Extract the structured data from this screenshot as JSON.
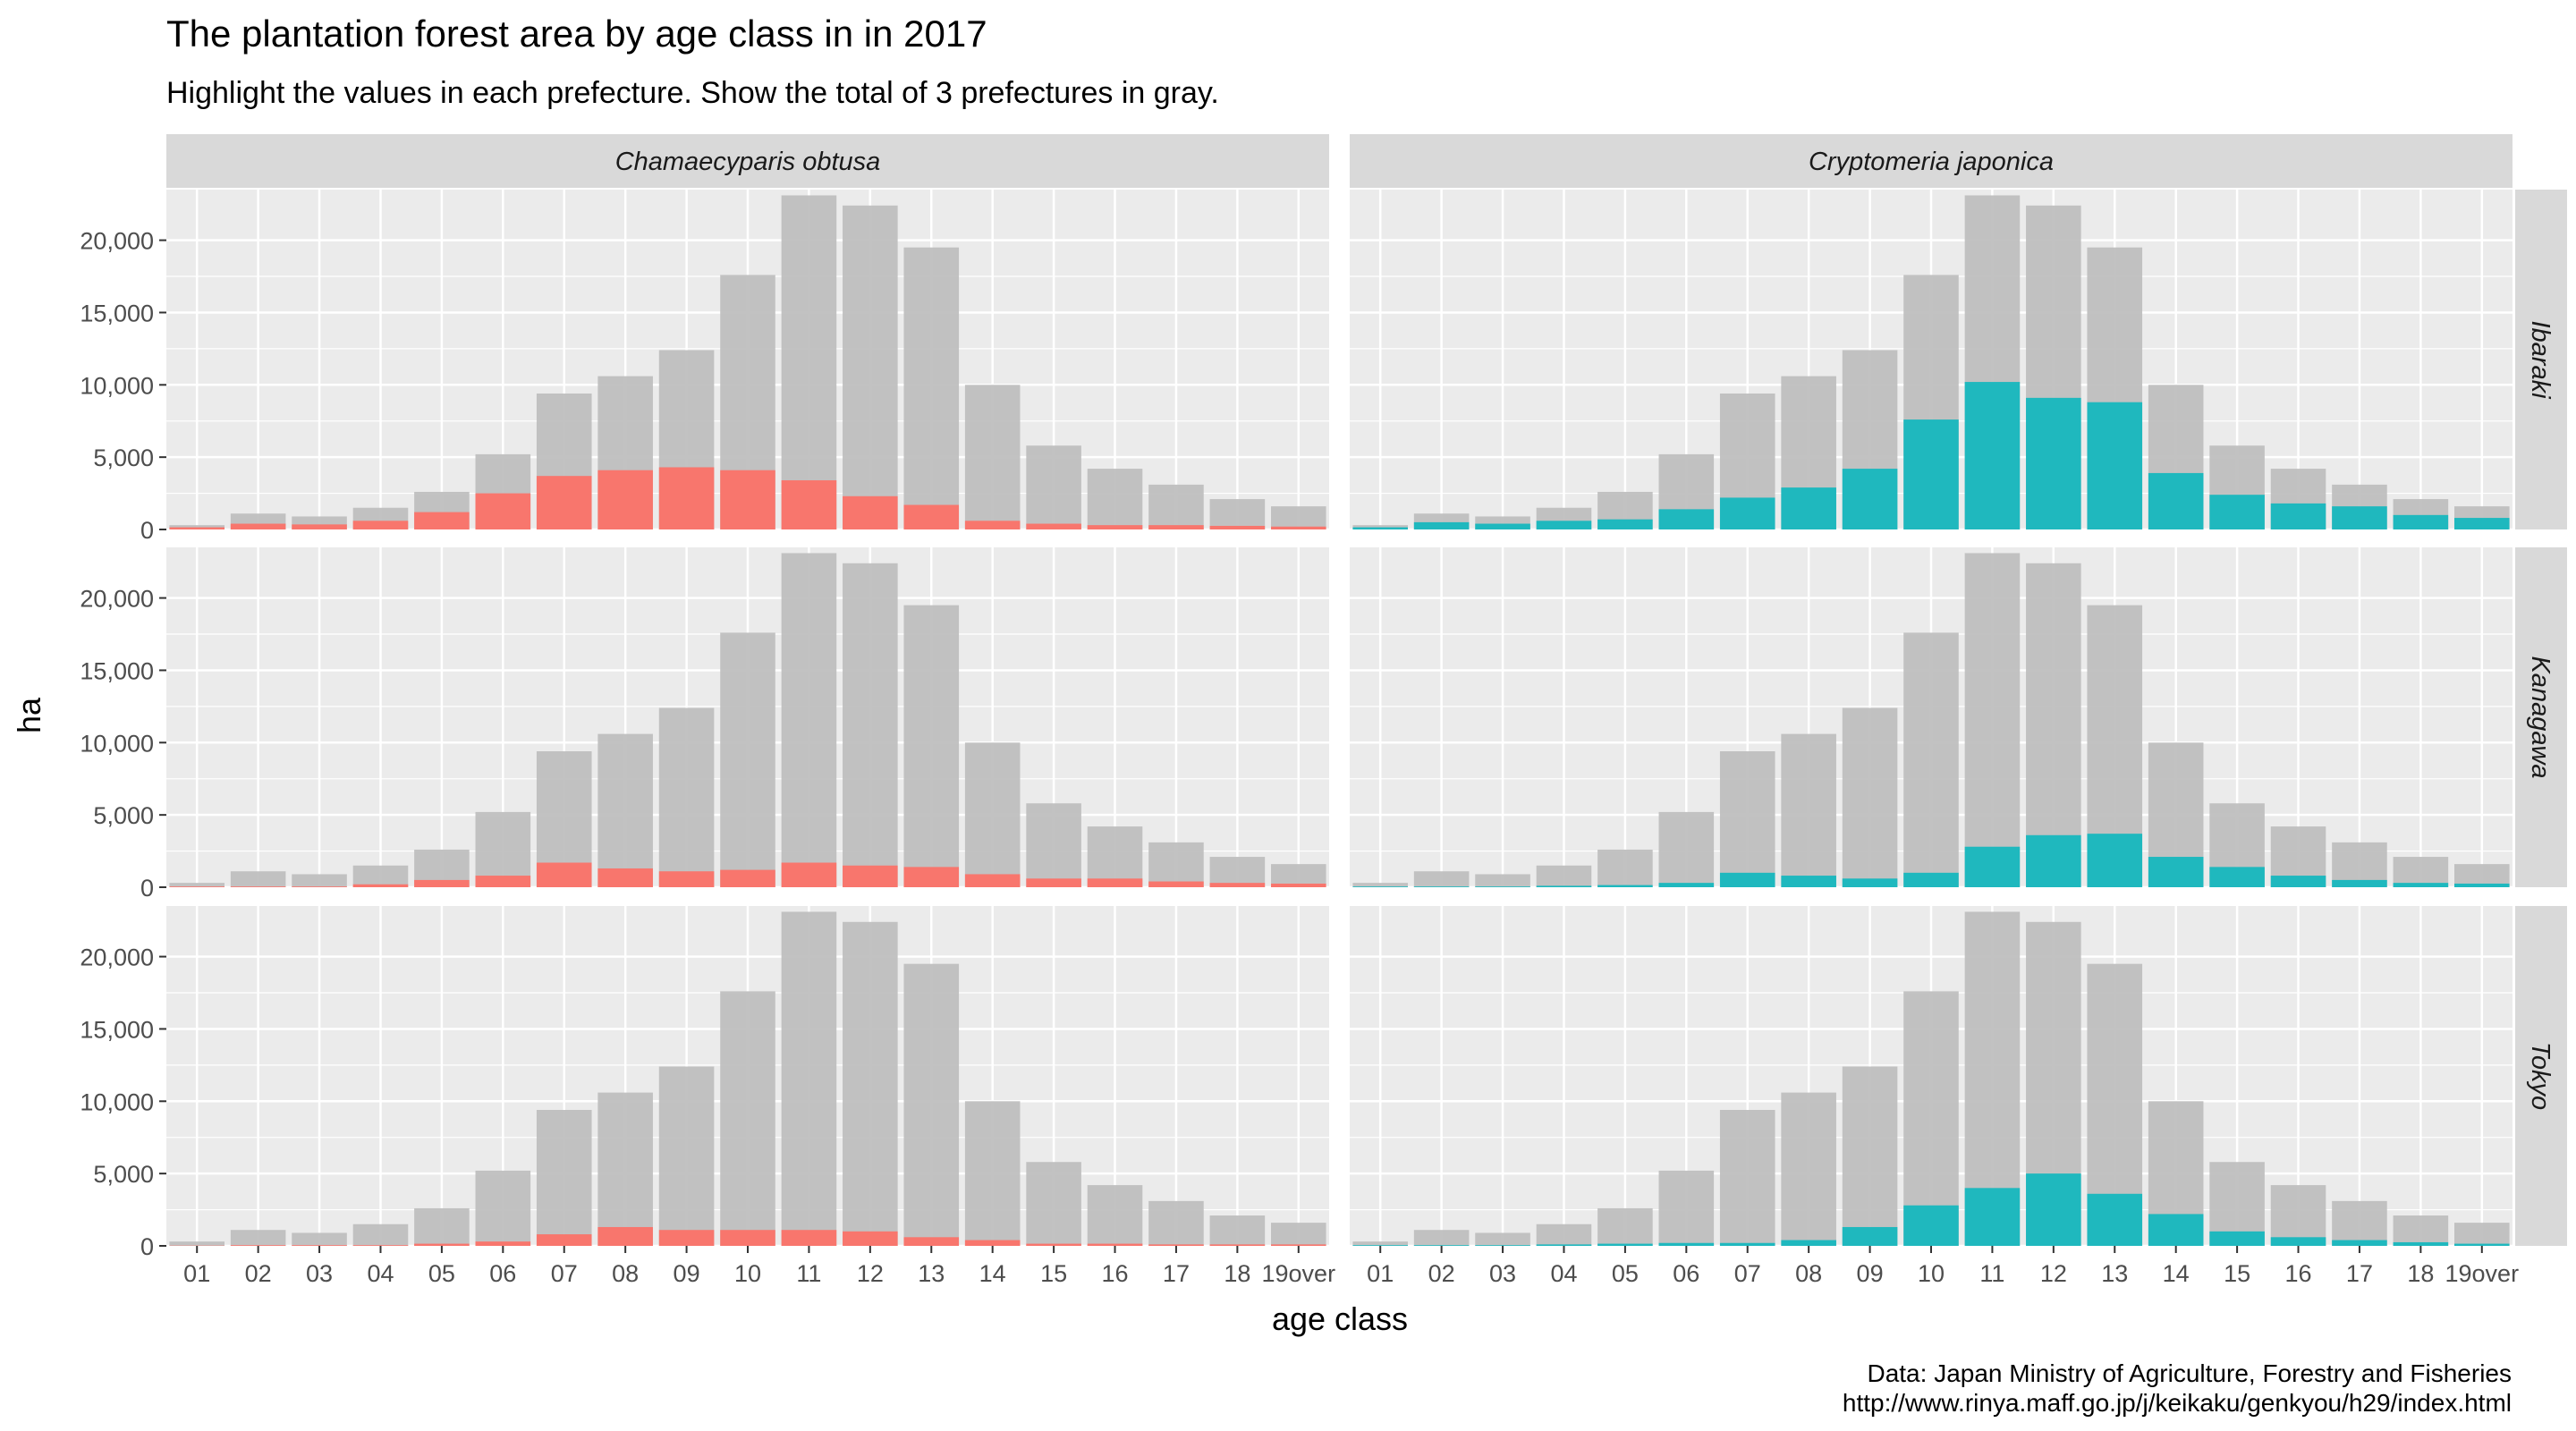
{
  "title": "The plantation forest area by age class in in 2017",
  "subtitle": "Highlight the values in each prefecture. Show the total of 3 prefectures in gray.",
  "caption_line1": "Data: Japan Ministry of Agriculture, Forestry and Fisheries",
  "caption_line2": "http://www.rinya.maff.go.jp/j/keikaku/genkyou/h29/index.html",
  "colors": {
    "panel_bg": "#EBEBEB",
    "strip_bg": "#D9D9D9",
    "grid": "#FFFFFF",
    "total": "#BFBFBF",
    "chamaecyparis": "#F8766D",
    "cryptomeria": "#1FB8BE"
  },
  "chart_data": {
    "type": "bar",
    "xlabel": "age class",
    "ylabel": "ha",
    "ylim": [
      0,
      23500
    ],
    "yticks": [
      0,
      5000,
      10000,
      15000,
      20000
    ],
    "ytick_labels": [
      "0",
      "5,000",
      "10,000",
      "15,000",
      "20,000"
    ],
    "grid": true,
    "categories": [
      "01",
      "02",
      "03",
      "04",
      "05",
      "06",
      "07",
      "08",
      "09",
      "10",
      "11",
      "12",
      "13",
      "14",
      "15",
      "16",
      "17",
      "18",
      "19over"
    ],
    "xtick_labels": [
      "01",
      "02",
      "03",
      "04",
      "05",
      "06",
      "07",
      "08",
      "09",
      "10",
      "11",
      "12",
      "13",
      "14",
      "15",
      "16",
      "17",
      "18",
      "19over"
    ],
    "columns": [
      "Chamaecyparis obtusa",
      "Cryptomeria japonica"
    ],
    "rows": [
      "Ibaraki",
      "Kanagawa",
      "Tokyo"
    ],
    "total": [
      300,
      1100,
      900,
      1500,
      2600,
      5200,
      9400,
      10600,
      12400,
      17600,
      23100,
      22400,
      19500,
      10000,
      5800,
      4200,
      3100,
      2100,
      1600
    ],
    "panels": [
      {
        "row": "Ibaraki",
        "column": "Chamaecyparis obtusa",
        "values": [
          150,
          400,
          350,
          600,
          1200,
          2500,
          3700,
          4100,
          4300,
          4100,
          3400,
          2300,
          1700,
          600,
          400,
          300,
          300,
          250,
          200
        ]
      },
      {
        "row": "Ibaraki",
        "column": "Cryptomeria japonica",
        "values": [
          150,
          500,
          400,
          600,
          700,
          1400,
          2200,
          2900,
          4200,
          7600,
          10200,
          9100,
          8800,
          3900,
          2400,
          1800,
          1600,
          1000,
          800
        ]
      },
      {
        "row": "Kanagawa",
        "column": "Chamaecyparis obtusa",
        "values": [
          50,
          50,
          50,
          200,
          500,
          800,
          1700,
          1300,
          1100,
          1200,
          1700,
          1500,
          1400,
          900,
          600,
          600,
          400,
          300,
          250
        ]
      },
      {
        "row": "Kanagawa",
        "column": "Cryptomeria japonica",
        "values": [
          50,
          50,
          50,
          100,
          150,
          300,
          1000,
          800,
          600,
          1000,
          2800,
          3600,
          3700,
          2100,
          1400,
          800,
          500,
          300,
          250
        ]
      },
      {
        "row": "Tokyo",
        "column": "Chamaecyparis obtusa",
        "values": [
          20,
          50,
          50,
          50,
          150,
          300,
          800,
          1300,
          1100,
          1100,
          1100,
          1000,
          600,
          400,
          150,
          150,
          100,
          100,
          100
        ]
      },
      {
        "row": "Tokyo",
        "column": "Cryptomeria japonica",
        "values": [
          50,
          50,
          50,
          100,
          150,
          200,
          200,
          400,
          1300,
          2800,
          4000,
          5000,
          3600,
          2200,
          1000,
          600,
          400,
          250,
          150
        ]
      }
    ]
  }
}
